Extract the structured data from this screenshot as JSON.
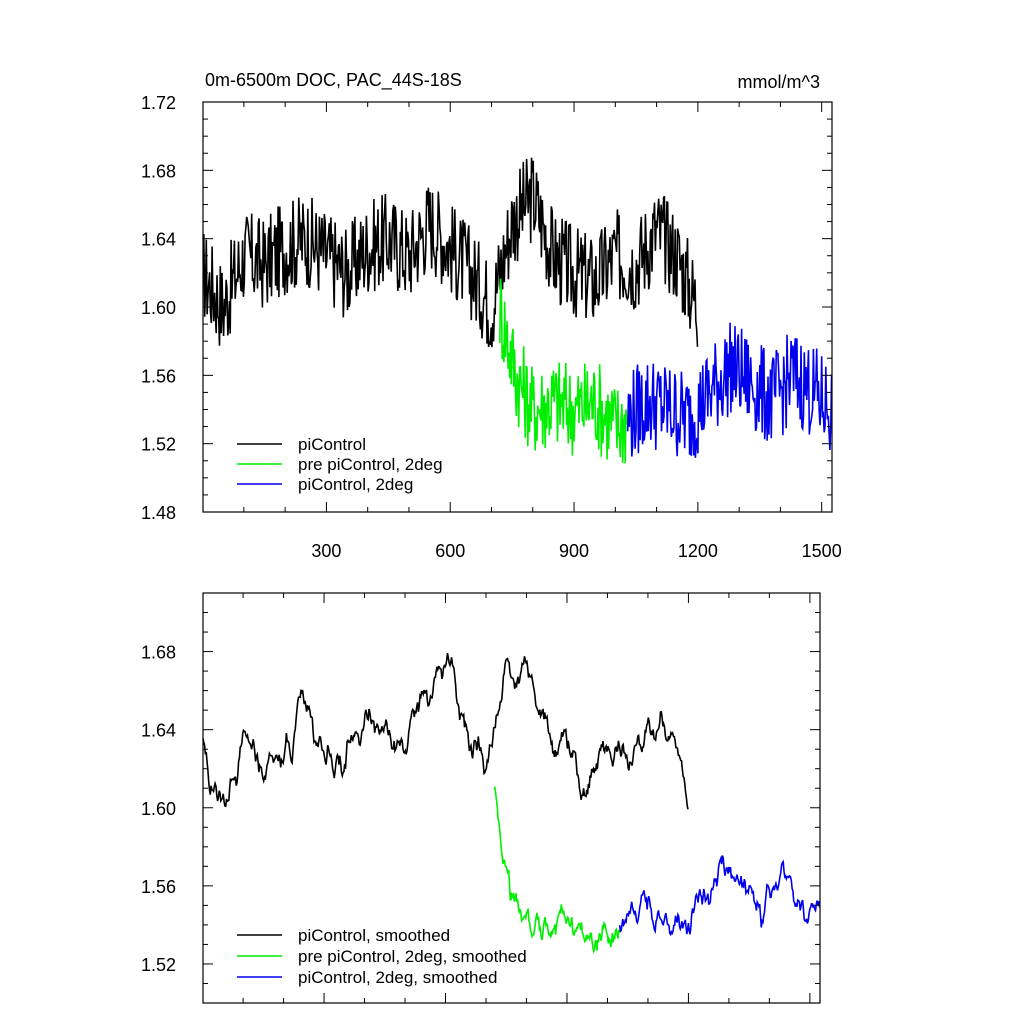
{
  "chart_data": [
    {
      "type": "line",
      "title": "0m-6500m DOC, PAC_44S-18S",
      "units": "mmol/m^3",
      "xlim": [
        1,
        1525
      ],
      "ylim": [
        1.48,
        1.72
      ],
      "xticks": [
        300,
        600,
        900,
        1200,
        1500
      ],
      "yticks": [
        1.48,
        1.52,
        1.56,
        1.6,
        1.64,
        1.68,
        1.72
      ],
      "ytick_labels": [
        "1.48",
        "1.52",
        "1.56",
        "1.60",
        "1.64",
        "1.68",
        "1.72"
      ],
      "grid": false,
      "legend": "bottom-left",
      "series": [
        {
          "name": "piControl",
          "color": "#000000",
          "x": [
            1,
            50,
            100,
            150,
            200,
            250,
            300,
            350,
            400,
            450,
            500,
            550,
            600,
            650,
            700,
            750,
            800,
            850,
            900,
            950,
            1000,
            1050,
            1100,
            1150,
            1200
          ],
          "values": [
            1.62,
            1.6,
            1.63,
            1.625,
            1.635,
            1.64,
            1.63,
            1.62,
            1.635,
            1.64,
            1.63,
            1.65,
            1.635,
            1.62,
            1.6,
            1.65,
            1.665,
            1.63,
            1.62,
            1.615,
            1.63,
            1.625,
            1.645,
            1.63,
            1.6
          ]
        },
        {
          "name": "pre piControl, 2deg",
          "color": "#00ee00",
          "x": [
            720,
            760,
            800,
            850,
            900,
            950,
            1000,
            1030
          ],
          "values": [
            1.6,
            1.56,
            1.54,
            1.545,
            1.54,
            1.545,
            1.53,
            1.535
          ]
        },
        {
          "name": "piControl, 2deg",
          "color": "#0000ee",
          "x": [
            1030,
            1080,
            1130,
            1180,
            1230,
            1280,
            1330,
            1380,
            1430,
            1480,
            1525
          ],
          "values": [
            1.535,
            1.545,
            1.54,
            1.535,
            1.55,
            1.565,
            1.555,
            1.545,
            1.56,
            1.55,
            1.54
          ]
        }
      ]
    },
    {
      "type": "line",
      "title": "",
      "xlim": [
        1,
        1525
      ],
      "ylim": [
        1.5,
        1.71
      ],
      "xticks": [
        300,
        600,
        900,
        1200,
        1500
      ],
      "yticks": [
        1.52,
        1.56,
        1.6,
        1.64,
        1.68
      ],
      "ytick_labels": [
        "1.52",
        "1.56",
        "1.60",
        "1.64",
        "1.68"
      ],
      "grid": false,
      "legend": "bottom-left",
      "series": [
        {
          "name": "piControl, smoothed",
          "color": "#000000",
          "x": [
            1,
            50,
            100,
            150,
            200,
            250,
            300,
            350,
            400,
            450,
            500,
            550,
            600,
            650,
            700,
            750,
            800,
            850,
            900,
            950,
            1000,
            1050,
            1100,
            1150,
            1200
          ],
          "values": [
            1.63,
            1.6,
            1.635,
            1.62,
            1.625,
            1.655,
            1.63,
            1.62,
            1.645,
            1.64,
            1.63,
            1.655,
            1.675,
            1.64,
            1.625,
            1.665,
            1.675,
            1.64,
            1.625,
            1.615,
            1.63,
            1.625,
            1.645,
            1.64,
            1.6
          ]
        },
        {
          "name": "pre piControl, 2deg, smoothed",
          "color": "#00ee00",
          "x": [
            720,
            760,
            800,
            850,
            900,
            950,
            1000,
            1030
          ],
          "values": [
            1.61,
            1.555,
            1.545,
            1.54,
            1.545,
            1.535,
            1.53,
            1.535
          ]
        },
        {
          "name": "piControl, 2deg, smoothed",
          "color": "#0000ee",
          "x": [
            1030,
            1080,
            1130,
            1180,
            1230,
            1280,
            1330,
            1380,
            1430,
            1480,
            1525
          ],
          "values": [
            1.535,
            1.55,
            1.545,
            1.535,
            1.55,
            1.575,
            1.56,
            1.545,
            1.565,
            1.55,
            1.54
          ]
        }
      ]
    }
  ]
}
